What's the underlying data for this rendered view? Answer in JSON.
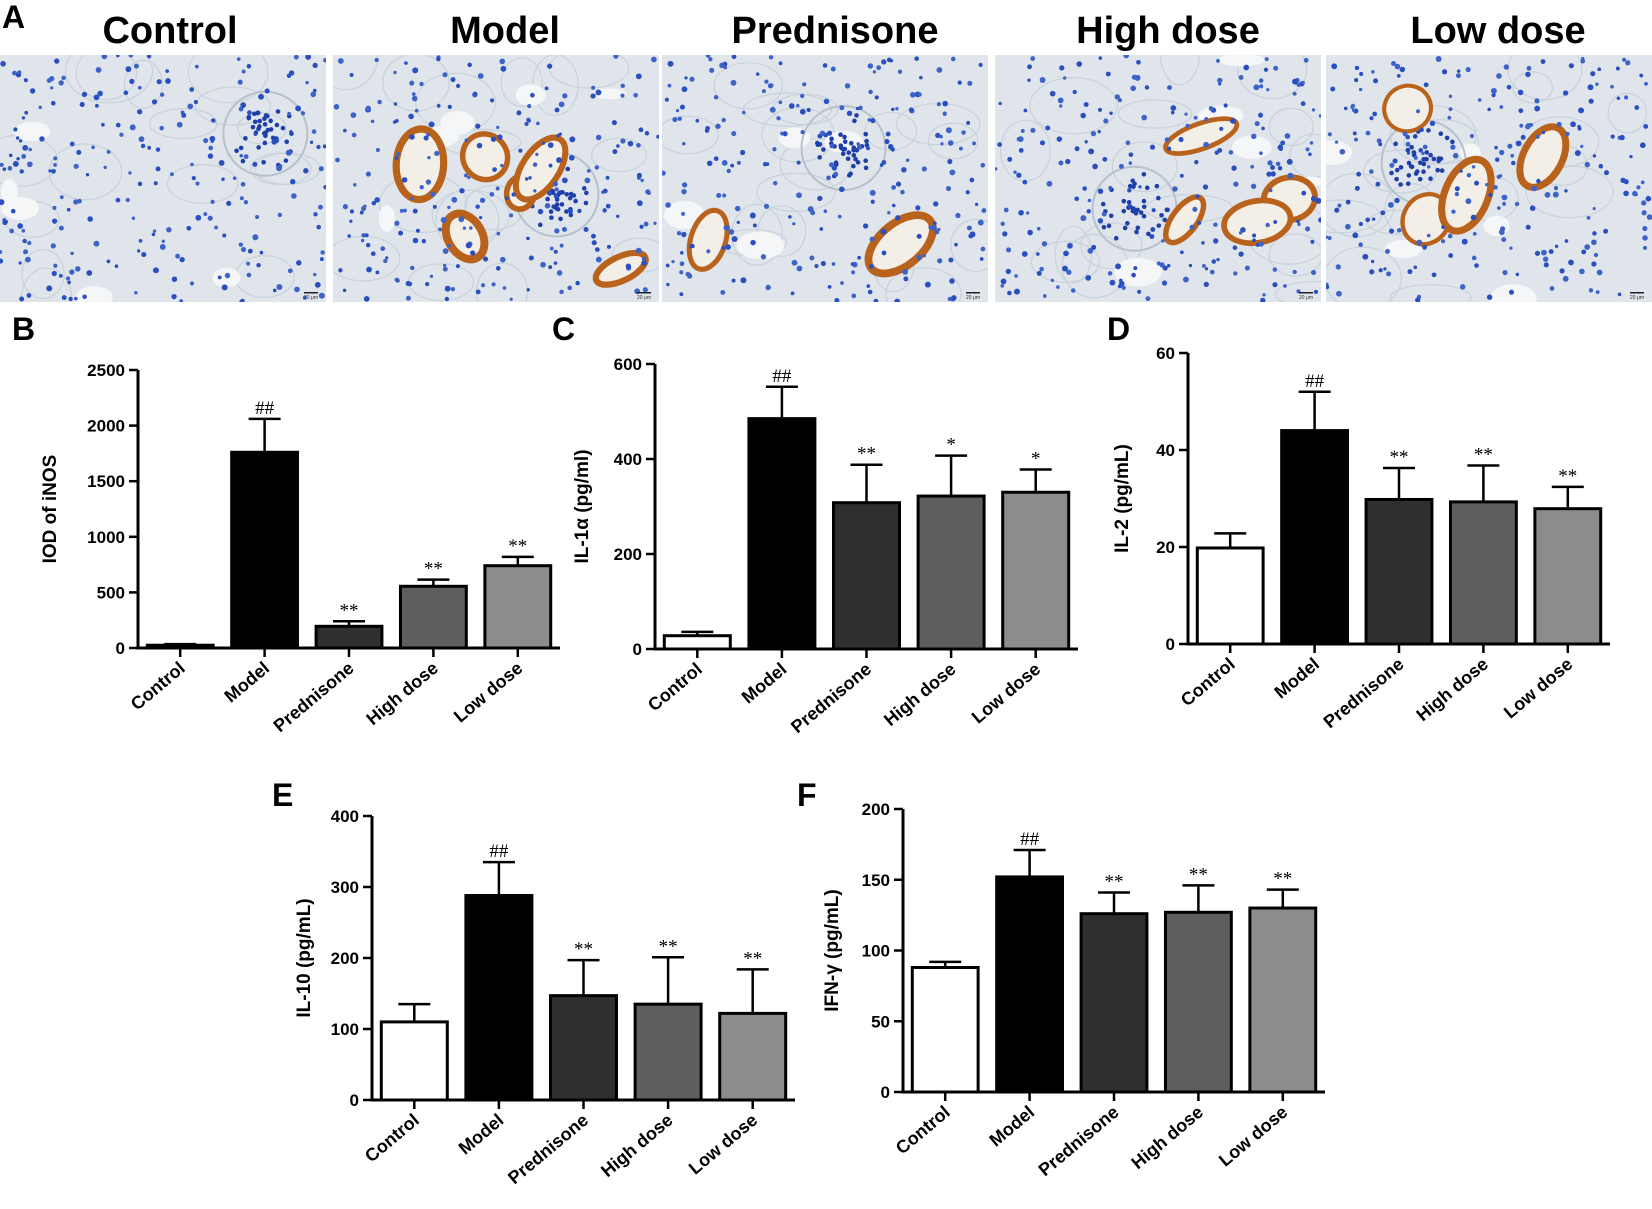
{
  "histology": {
    "letter": "A",
    "panels": [
      {
        "title": "Control",
        "scale_label": "20 μm",
        "stain": "none"
      },
      {
        "title": "Model",
        "scale_label": "20 μm",
        "stain": "strong"
      },
      {
        "title": "Prednisone",
        "scale_label": "20 μm",
        "stain": "light"
      },
      {
        "title": "High dose",
        "scale_label": "20 μm",
        "stain": "moderate"
      },
      {
        "title": "Low dose",
        "scale_label": "20 μm",
        "stain": "moderate"
      }
    ]
  },
  "colors": {
    "bar_fills": [
      "#ffffff",
      "#000000",
      "#2f2f2f",
      "#5e5e5e",
      "#8c8c8c"
    ],
    "tissue_bg": "#dfe5ea",
    "nuclei": "#2a4fbf",
    "stain": "#b8621c"
  },
  "chart_data": [
    {
      "type": "bar",
      "letter": "B",
      "ylabel": "IOD of iNOS",
      "ylim": [
        0,
        2500
      ],
      "yticks": [
        0,
        500,
        1000,
        1500,
        2000,
        2500
      ],
      "categories": [
        "Control",
        "Model",
        "Prednisone",
        "High dose",
        "Low dose"
      ],
      "values": [
        25,
        1760,
        195,
        555,
        740
      ],
      "errors": [
        10,
        300,
        45,
        60,
        80
      ],
      "annotations": [
        "",
        "##",
        "**",
        "**",
        "**"
      ]
    },
    {
      "type": "bar",
      "letter": "C",
      "ylabel": "IL-1α (pg/ml)",
      "ylim": [
        0,
        600
      ],
      "yticks": [
        0,
        200,
        400,
        600
      ],
      "categories": [
        "Control",
        "Model",
        "Prednisone",
        "High dose",
        "Low dose"
      ],
      "values": [
        28,
        485,
        308,
        322,
        330
      ],
      "errors": [
        8,
        67,
        80,
        85,
        48
      ],
      "annotations": [
        "",
        "##",
        "**",
        "*",
        "*"
      ]
    },
    {
      "type": "bar",
      "letter": "D",
      "ylabel": "IL-2 (pg/mL)",
      "ylim": [
        0,
        60
      ],
      "yticks": [
        0,
        20,
        40,
        60
      ],
      "categories": [
        "Control",
        "Model",
        "Prednisone",
        "High dose",
        "Low dose"
      ],
      "values": [
        19.8,
        44,
        29.8,
        29.3,
        27.9
      ],
      "errors": [
        3,
        8,
        6.5,
        7.5,
        4.5
      ],
      "annotations": [
        "",
        "##",
        "**",
        "**",
        "**"
      ]
    },
    {
      "type": "bar",
      "letter": "E",
      "ylabel": "IL-10 (pg/mL)",
      "ylim": [
        0,
        400
      ],
      "yticks": [
        0,
        100,
        200,
        300,
        400
      ],
      "categories": [
        "Control",
        "Model",
        "Prednisone",
        "High dose",
        "Low dose"
      ],
      "values": [
        110,
        288,
        147,
        135,
        122
      ],
      "errors": [
        25,
        47,
        50,
        66,
        62
      ],
      "annotations": [
        "",
        "##",
        "**",
        "**",
        "**"
      ]
    },
    {
      "type": "bar",
      "letter": "F",
      "ylabel": "IFN-γ (pg/mL)",
      "ylim": [
        0,
        200
      ],
      "yticks": [
        0,
        50,
        100,
        150,
        200
      ],
      "categories": [
        "Control",
        "Model",
        "Prednisone",
        "High dose",
        "Low dose"
      ],
      "values": [
        88,
        152,
        126,
        127,
        130
      ],
      "errors": [
        4,
        19,
        15,
        19,
        13
      ],
      "annotations": [
        "",
        "##",
        "**",
        "**",
        "**"
      ]
    }
  ]
}
